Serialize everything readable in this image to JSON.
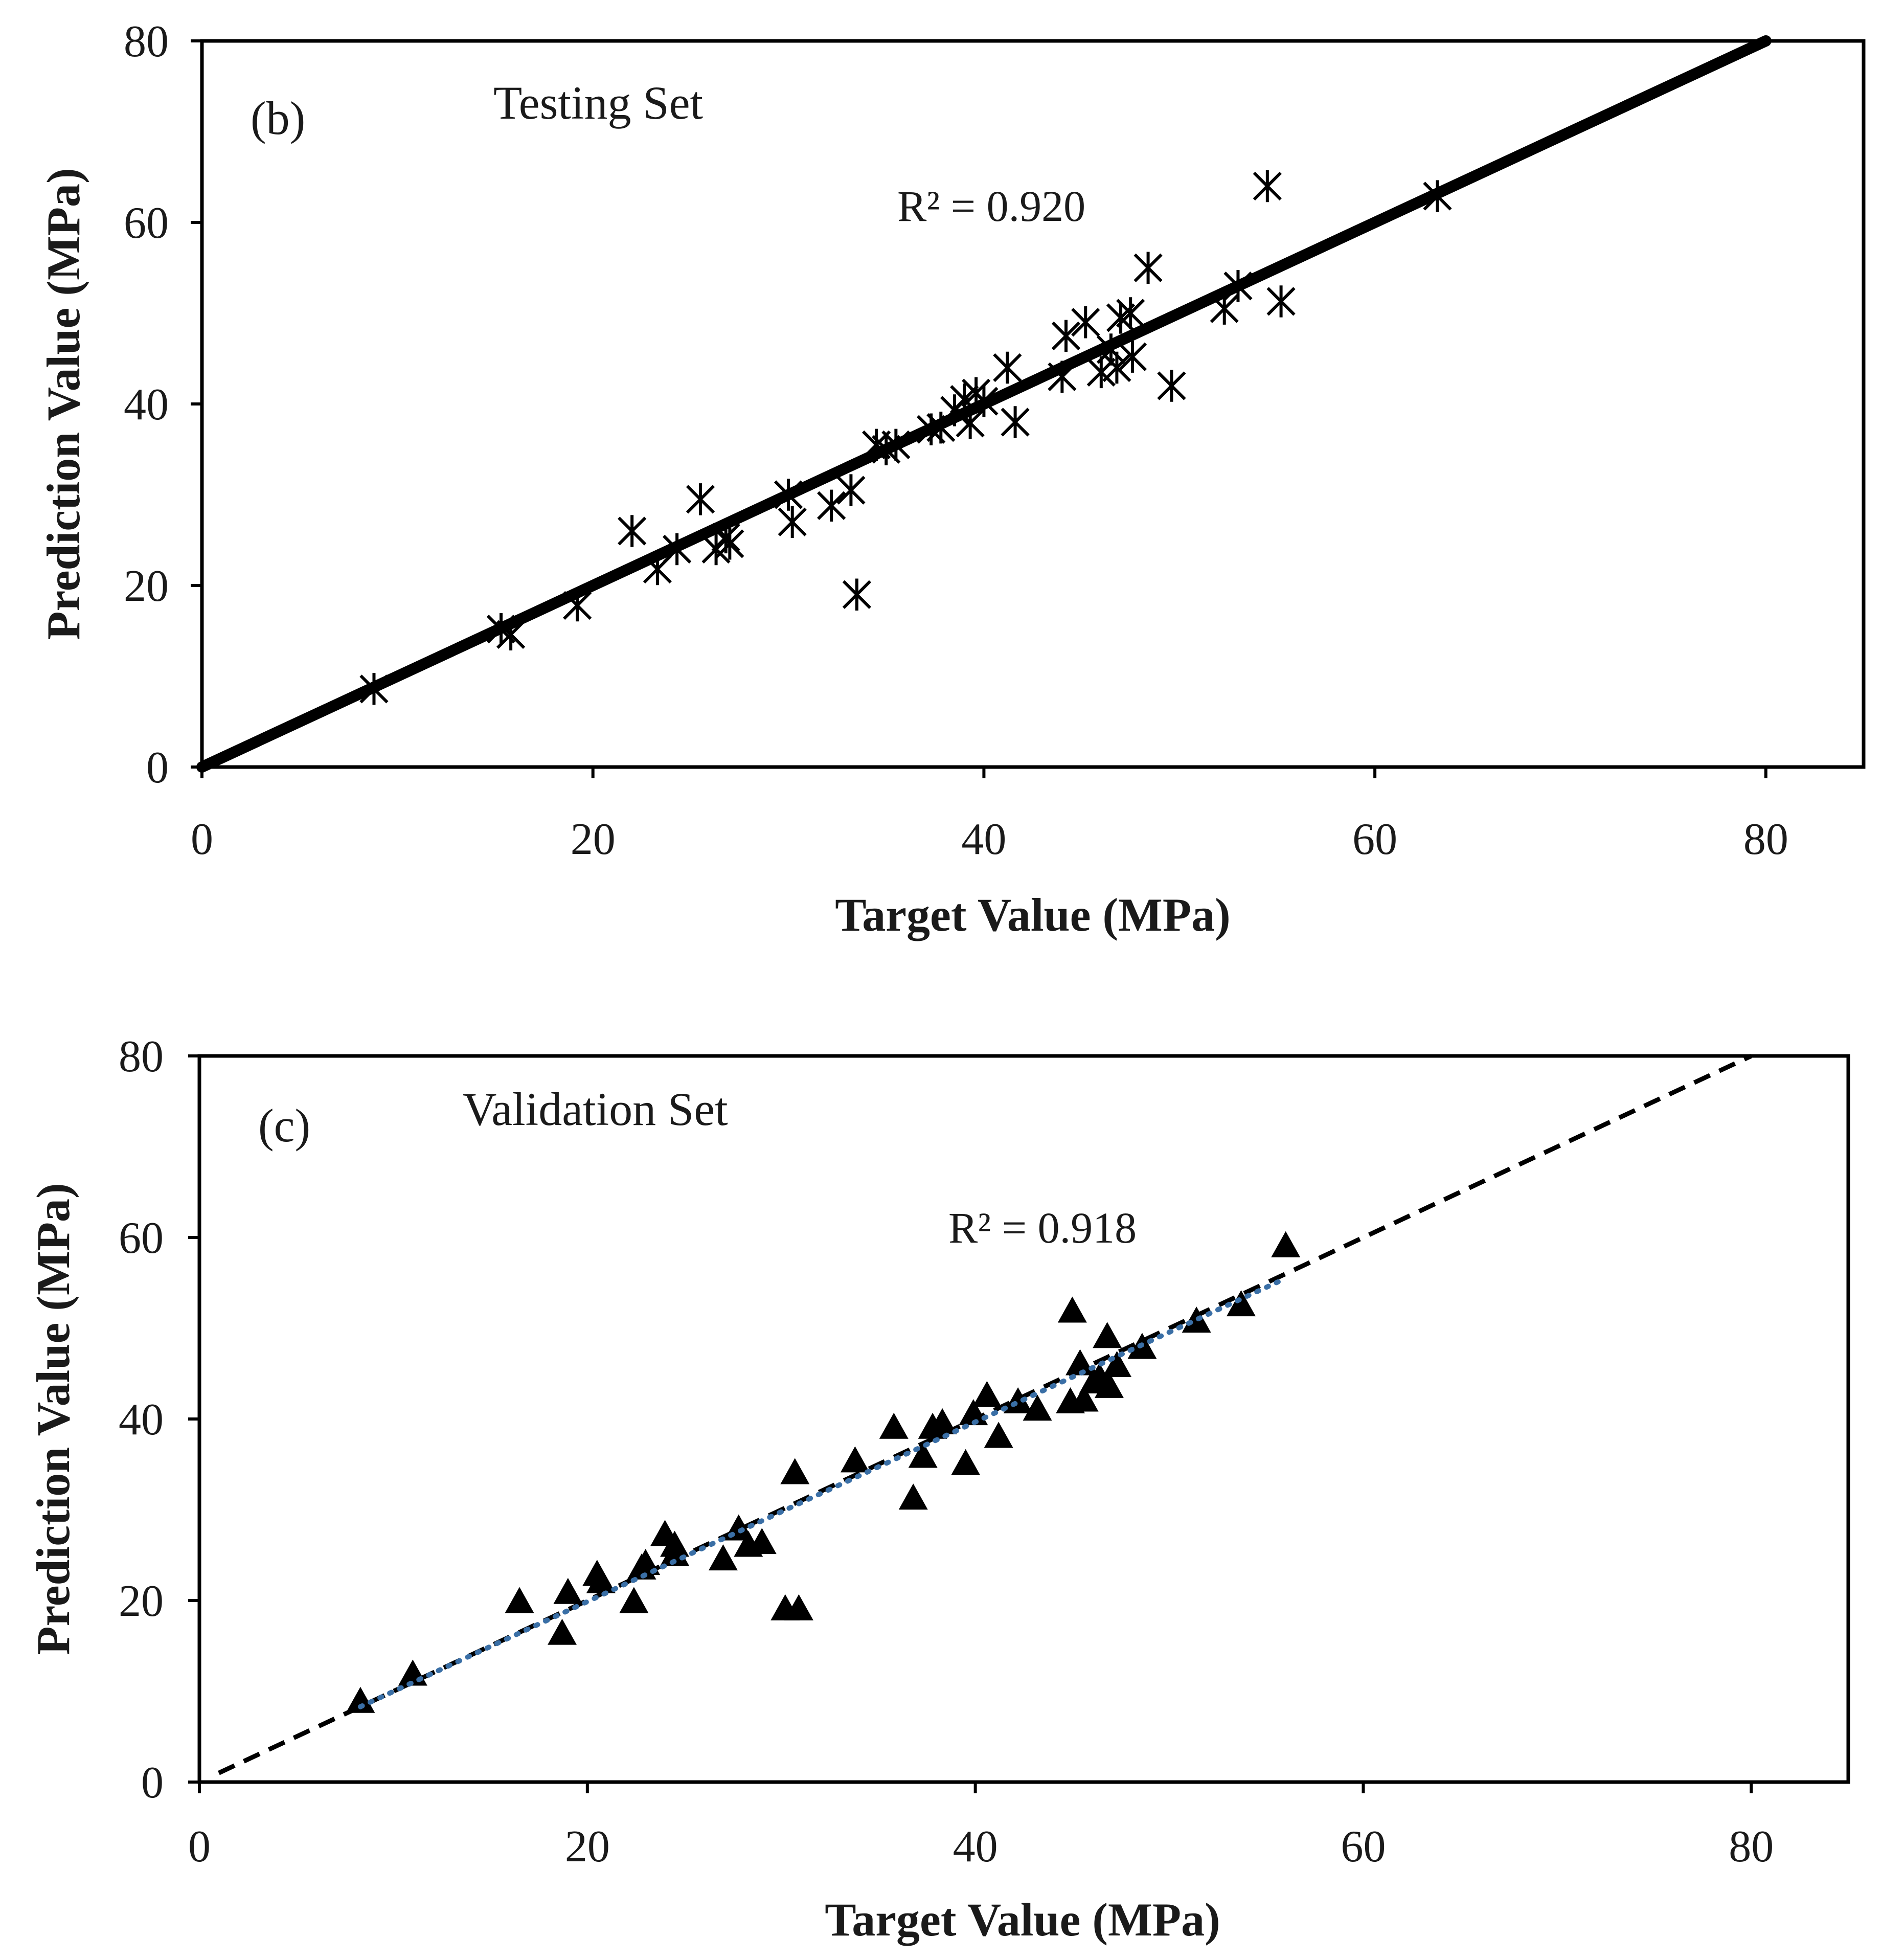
{
  "chart_data": [
    {
      "type": "scatter",
      "panel_label": "(b)",
      "title": "Testing Set",
      "xlabel": "Target Value (MPa)",
      "ylabel": "Prediction Value (MPa)",
      "xlim": [
        0,
        85
      ],
      "ylim": [
        0,
        80
      ],
      "xticks": [
        "0",
        "20",
        "40",
        "60",
        "80"
      ],
      "yticks": [
        "0",
        "20",
        "40",
        "60",
        "80"
      ],
      "xtick_values": [
        0,
        20,
        40,
        60,
        80
      ],
      "ytick_values": [
        0,
        20,
        40,
        60,
        80
      ],
      "marker": "asterisk",
      "annotation": "R² = 0.920",
      "fit_line": {
        "style": "solid",
        "x": [
          0,
          80
        ],
        "y": [
          0,
          80
        ]
      },
      "points": [
        [
          8.8,
          8.6
        ],
        [
          15.3,
          15.2
        ],
        [
          15.8,
          14.6
        ],
        [
          19.2,
          17.8
        ],
        [
          22.0,
          26.0
        ],
        [
          23.3,
          21.8
        ],
        [
          24.3,
          24.0
        ],
        [
          25.5,
          29.5
        ],
        [
          26.3,
          24.0
        ],
        [
          26.8,
          25.3
        ],
        [
          27.0,
          24.6
        ],
        [
          30.0,
          30.0
        ],
        [
          30.2,
          27.0
        ],
        [
          32.2,
          28.8
        ],
        [
          33.2,
          30.5
        ],
        [
          33.5,
          19.0
        ],
        [
          34.5,
          35.5
        ],
        [
          35.0,
          35.0
        ],
        [
          35.5,
          35.5
        ],
        [
          37.3,
          37.2
        ],
        [
          37.8,
          37.4
        ],
        [
          38.5,
          39.3
        ],
        [
          39.0,
          40.5
        ],
        [
          39.3,
          37.9
        ],
        [
          39.6,
          41.2
        ],
        [
          40.0,
          40.3
        ],
        [
          41.2,
          44.0
        ],
        [
          41.6,
          38.0
        ],
        [
          44.0,
          43.0
        ],
        [
          44.2,
          47.5
        ],
        [
          45.2,
          49.0
        ],
        [
          46.0,
          43.5
        ],
        [
          46.5,
          46.0
        ],
        [
          46.8,
          44.0
        ],
        [
          47.0,
          49.5
        ],
        [
          47.5,
          50.0
        ],
        [
          47.6,
          45.2
        ],
        [
          48.4,
          55.0
        ],
        [
          49.6,
          42.0
        ],
        [
          52.3,
          50.5
        ],
        [
          53.0,
          53.0
        ],
        [
          54.5,
          64.0
        ],
        [
          55.2,
          51.3
        ],
        [
          63.2,
          62.9
        ]
      ]
    },
    {
      "type": "scatter",
      "panel_label": "(c)",
      "title": "Validation Set",
      "xlabel": "Target Value (MPa)",
      "ylabel": "Prediction Value (MPa)",
      "xlim": [
        0,
        85
      ],
      "ylim": [
        0,
        80
      ],
      "xticks": [
        "0",
        "20",
        "40",
        "60",
        "80"
      ],
      "yticks": [
        "0",
        "20",
        "40",
        "60",
        "80"
      ],
      "xtick_values": [
        0,
        20,
        40,
        60,
        80
      ],
      "ytick_values": [
        0,
        20,
        40,
        60,
        80
      ],
      "marker": "triangle",
      "annotation": "R² = 0.918",
      "reference_line": {
        "style": "dashed",
        "color": "#000000",
        "x": [
          1,
          80
        ],
        "y": [
          1,
          80
        ]
      },
      "fit_line": {
        "style": "dotted",
        "color": "#3a6fa6",
        "x": [
          8.3,
          56
        ],
        "y": [
          8.3,
          55.5
        ]
      },
      "points": [
        [
          8.3,
          8.8
        ],
        [
          11.0,
          11.8
        ],
        [
          16.5,
          19.8
        ],
        [
          18.7,
          16.3
        ],
        [
          19.0,
          20.8
        ],
        [
          20.5,
          22.8
        ],
        [
          20.7,
          22.0
        ],
        [
          22.4,
          19.8
        ],
        [
          22.8,
          23.5
        ],
        [
          23.0,
          24.0
        ],
        [
          24.0,
          27.2
        ],
        [
          24.5,
          25.0
        ],
        [
          24.5,
          26.0
        ],
        [
          27.0,
          24.5
        ],
        [
          27.8,
          27.8
        ],
        [
          28.3,
          26.0
        ],
        [
          29.0,
          26.3
        ],
        [
          30.2,
          19.0
        ],
        [
          30.9,
          19.0
        ],
        [
          30.7,
          34.0
        ],
        [
          33.8,
          35.3
        ],
        [
          35.8,
          39.0
        ],
        [
          36.8,
          31.2
        ],
        [
          37.3,
          35.8
        ],
        [
          37.8,
          39.0
        ],
        [
          38.3,
          39.5
        ],
        [
          39.5,
          35.0
        ],
        [
          39.9,
          40.5
        ],
        [
          40.6,
          42.5
        ],
        [
          41.2,
          38.0
        ],
        [
          42.2,
          41.8
        ],
        [
          43.2,
          41.0
        ],
        [
          44.9,
          41.8
        ],
        [
          45.0,
          51.8
        ],
        [
          45.4,
          46.0
        ],
        [
          45.6,
          42.0
        ],
        [
          46.1,
          44.0
        ],
        [
          46.4,
          44.5
        ],
        [
          46.8,
          49.0
        ],
        [
          46.9,
          43.5
        ],
        [
          47.3,
          45.8
        ],
        [
          48.6,
          47.8
        ],
        [
          51.4,
          50.7
        ],
        [
          53.7,
          52.5
        ],
        [
          56.0,
          59.0
        ]
      ]
    }
  ]
}
